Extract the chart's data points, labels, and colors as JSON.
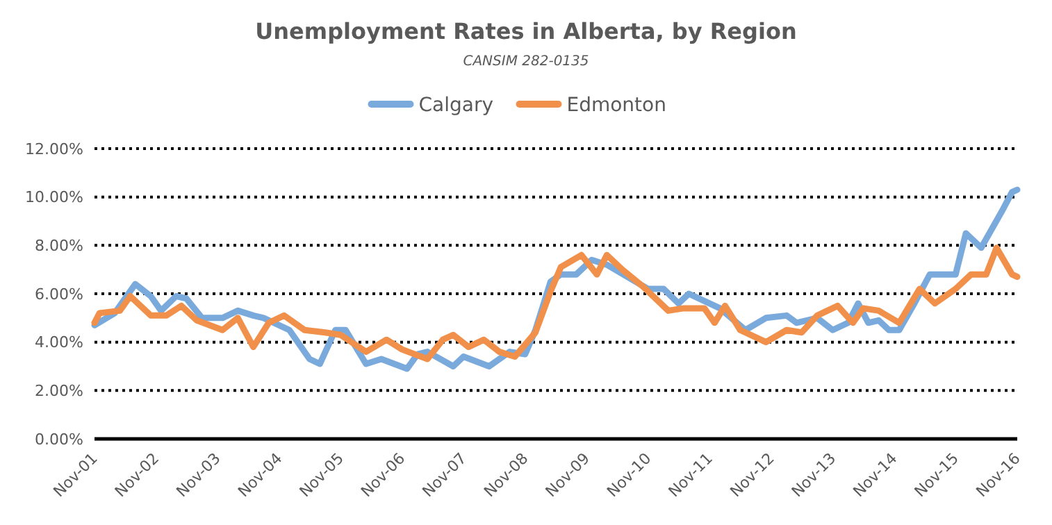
{
  "chart_data": {
    "type": "line",
    "title": "Unemployment Rates in Alberta, by Region",
    "subtitle": "CANSIM 282-0135",
    "xlim": [
      "2001-11",
      "2016-11"
    ],
    "xticks": [
      {
        "value": "2001-11",
        "label": "Nov-01"
      },
      {
        "value": "2002-11",
        "label": "Nov-02"
      },
      {
        "value": "2003-11",
        "label": "Nov-03"
      },
      {
        "value": "2004-11",
        "label": "Nov-04"
      },
      {
        "value": "2005-11",
        "label": "Nov-05"
      },
      {
        "value": "2006-11",
        "label": "Nov-06"
      },
      {
        "value": "2007-11",
        "label": "Nov-07"
      },
      {
        "value": "2008-11",
        "label": "Nov-08"
      },
      {
        "value": "2009-11",
        "label": "Nov-09"
      },
      {
        "value": "2010-11",
        "label": "Nov-10"
      },
      {
        "value": "2011-11",
        "label": "Nov-11"
      },
      {
        "value": "2012-11",
        "label": "Nov-12"
      },
      {
        "value": "2013-11",
        "label": "Nov-13"
      },
      {
        "value": "2014-11",
        "label": "Nov-14"
      },
      {
        "value": "2015-11",
        "label": "Nov-15"
      },
      {
        "value": "2016-11",
        "label": "Nov-16"
      }
    ],
    "ylim": [
      0,
      12
    ],
    "yticks": [
      {
        "value": 0,
        "label": "0.00%"
      },
      {
        "value": 2,
        "label": "2.00%"
      },
      {
        "value": 4,
        "label": "4.00%"
      },
      {
        "value": 6,
        "label": "6.00%"
      },
      {
        "value": 8,
        "label": "8.00%"
      },
      {
        "value": 10,
        "label": "10.00%"
      },
      {
        "value": 12,
        "label": "12.00%"
      }
    ],
    "grid": "y",
    "legend": "top",
    "marker": "none",
    "line_style": "solid",
    "series": [
      {
        "name": "Calgary",
        "color": "#7aaadc",
        "x": [
          "2001-11",
          "2002-03",
          "2002-07",
          "2002-10",
          "2002-12",
          "2003-03",
          "2003-05",
          "2003-08",
          "2003-12",
          "2004-03",
          "2004-06",
          "2004-08",
          "2005-01",
          "2005-05",
          "2005-07",
          "2005-10",
          "2005-12",
          "2006-04",
          "2006-07",
          "2006-12",
          "2007-02",
          "2007-04",
          "2007-09",
          "2007-11",
          "2008-04",
          "2008-08",
          "2008-11",
          "2009-01",
          "2009-04",
          "2009-06",
          "2009-09",
          "2009-12",
          "2010-03",
          "2010-07",
          "2010-11",
          "2011-02",
          "2011-05",
          "2011-07",
          "2012-01",
          "2012-06",
          "2012-10",
          "2013-02",
          "2013-04",
          "2013-08",
          "2013-11",
          "2014-02",
          "2014-04",
          "2014-06",
          "2014-08",
          "2014-10",
          "2014-12",
          "2015-03",
          "2015-06",
          "2015-11",
          "2016-01",
          "2016-04",
          "2016-08",
          "2016-10",
          "2016-11"
        ],
        "values": [
          4.7,
          5.2,
          6.4,
          5.9,
          5.3,
          5.9,
          5.8,
          5.0,
          5.0,
          5.3,
          5.1,
          5.0,
          4.5,
          3.3,
          3.1,
          4.5,
          4.5,
          3.1,
          3.3,
          2.9,
          3.5,
          3.6,
          3.0,
          3.4,
          3.0,
          3.6,
          3.5,
          4.5,
          6.5,
          6.8,
          6.8,
          7.4,
          7.2,
          6.7,
          6.2,
          6.2,
          5.6,
          6.0,
          5.4,
          4.5,
          5.0,
          5.1,
          4.8,
          5.0,
          4.5,
          4.8,
          5.6,
          4.8,
          4.9,
          4.5,
          4.5,
          5.6,
          6.8,
          6.8,
          8.5,
          7.9,
          9.4,
          10.2,
          10.3
        ]
      },
      {
        "name": "Edmonton",
        "color": "#f0904a",
        "x": [
          "2001-11",
          "2001-12",
          "2002-04",
          "2002-06",
          "2002-10",
          "2003-01",
          "2003-04",
          "2003-07",
          "2003-12",
          "2004-03",
          "2004-06",
          "2004-09",
          "2004-12",
          "2005-04",
          "2005-08",
          "2005-11",
          "2006-04",
          "2006-08",
          "2006-11",
          "2007-04",
          "2007-07",
          "2007-09",
          "2007-12",
          "2008-03",
          "2008-06",
          "2008-09",
          "2009-01",
          "2009-04",
          "2009-06",
          "2009-10",
          "2010-01",
          "2010-03",
          "2010-06",
          "2010-10",
          "2011-03",
          "2011-06",
          "2011-10",
          "2011-12",
          "2012-02",
          "2012-05",
          "2012-10",
          "2013-02",
          "2013-05",
          "2013-08",
          "2013-12",
          "2014-03",
          "2014-05",
          "2014-08",
          "2014-12",
          "2015-04",
          "2015-07",
          "2015-11",
          "2016-02",
          "2016-05",
          "2016-07",
          "2016-10",
          "2016-11"
        ],
        "values": [
          4.8,
          5.2,
          5.3,
          5.9,
          5.1,
          5.1,
          5.5,
          4.9,
          4.5,
          5.0,
          3.8,
          4.8,
          5.1,
          4.5,
          4.4,
          4.3,
          3.6,
          4.1,
          3.7,
          3.3,
          4.1,
          4.3,
          3.8,
          4.1,
          3.6,
          3.4,
          4.4,
          6.1,
          7.1,
          7.6,
          6.8,
          7.6,
          7.0,
          6.3,
          5.3,
          5.4,
          5.4,
          4.8,
          5.5,
          4.5,
          4.0,
          4.5,
          4.4,
          5.1,
          5.5,
          4.8,
          5.4,
          5.3,
          4.8,
          6.2,
          5.6,
          6.2,
          6.8,
          6.8,
          7.9,
          6.8,
          6.7
        ]
      }
    ]
  }
}
